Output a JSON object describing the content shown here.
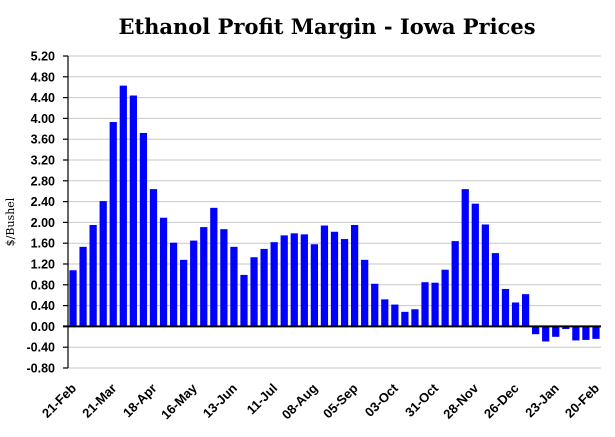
{
  "chart_data": {
    "type": "bar",
    "title": "Ethanol Profit Margin - Iowa Prices",
    "ylabel": "$/Bushel",
    "xlabel": "",
    "ylim": [
      -0.8,
      5.2
    ],
    "yticks": [
      "5.20",
      "4.80",
      "4.40",
      "4.00",
      "3.60",
      "3.20",
      "2.80",
      "2.40",
      "2.00",
      "1.60",
      "1.20",
      "0.80",
      "0.40",
      "0.00",
      "-0.40",
      "-0.80"
    ],
    "x_tick_labels": [
      "21-Feb",
      "21-Mar",
      "18-Apr",
      "16-May",
      "13-Jun",
      "11-Jul",
      "08-Aug",
      "05-Sep",
      "03-Oct",
      "31-Oct",
      "28-Nov",
      "26-Dec",
      "23-Jan",
      "20-Feb"
    ],
    "grid": true,
    "bar_color": "#0000ff",
    "values": [
      1.08,
      1.53,
      1.95,
      2.41,
      3.93,
      4.63,
      4.44,
      3.72,
      2.64,
      2.09,
      1.61,
      1.28,
      1.65,
      1.91,
      2.28,
      1.87,
      1.53,
      0.99,
      1.33,
      1.49,
      1.62,
      1.75,
      1.79,
      1.77,
      1.58,
      1.94,
      1.82,
      1.68,
      1.95,
      1.28,
      0.82,
      0.52,
      0.42,
      0.28,
      0.33,
      0.85,
      0.84,
      1.09,
      1.64,
      2.64,
      2.36,
      1.96,
      1.41,
      0.72,
      0.46,
      0.62,
      -0.15,
      -0.29,
      -0.2,
      -0.05,
      -0.27,
      -0.26,
      -0.24
    ]
  }
}
